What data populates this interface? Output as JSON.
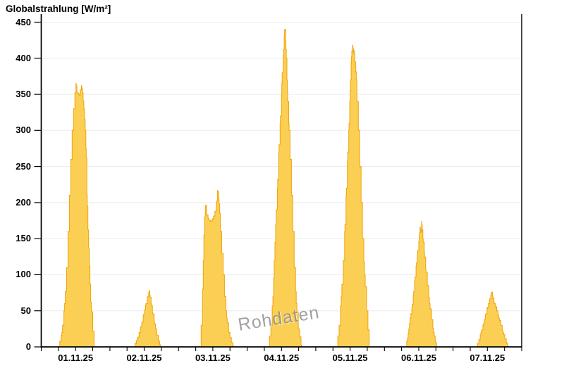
{
  "page": {
    "background": "#ffffff"
  },
  "chart_data": {
    "type": "area",
    "title": "Globalstrahlung [W/m²]",
    "watermark": "Rohdaten",
    "unit": "W/m²",
    "ylim": [
      0,
      450
    ],
    "y_ticks": [
      0,
      50,
      100,
      150,
      200,
      250,
      300,
      350,
      400,
      450
    ],
    "grid": true,
    "x_minor_ticks_per_day": 4,
    "categories": [
      "01.11.25",
      "02.11.25",
      "03.11.25",
      "04.11.25",
      "05.11.25",
      "06.11.25",
      "07.11.25"
    ],
    "daily_peaks_wm2": [
      365,
      78,
      217,
      440,
      418,
      174,
      76
    ],
    "series": [
      {
        "day": "01.11.25",
        "points": [
          [
            0.25,
            0
          ],
          [
            0.3,
            20
          ],
          [
            0.34,
            60
          ],
          [
            0.37,
            110
          ],
          [
            0.39,
            160
          ],
          [
            0.41,
            210
          ],
          [
            0.43,
            260
          ],
          [
            0.45,
            300
          ],
          [
            0.47,
            330
          ],
          [
            0.49,
            352
          ],
          [
            0.505,
            365
          ],
          [
            0.52,
            353
          ],
          [
            0.55,
            349
          ],
          [
            0.585,
            362
          ],
          [
            0.6,
            352
          ],
          [
            0.62,
            330
          ],
          [
            0.64,
            300
          ],
          [
            0.655,
            262
          ],
          [
            0.665,
            212
          ],
          [
            0.68,
            162
          ],
          [
            0.7,
            112
          ],
          [
            0.72,
            62
          ],
          [
            0.75,
            22
          ],
          [
            0.77,
            0
          ]
        ]
      },
      {
        "day": "02.11.25",
        "points": [
          [
            0.345,
            0
          ],
          [
            0.4,
            12
          ],
          [
            0.45,
            28
          ],
          [
            0.49,
            45
          ],
          [
            0.52,
            58
          ],
          [
            0.55,
            70
          ],
          [
            0.572,
            78
          ],
          [
            0.58,
            72
          ],
          [
            0.6,
            60
          ],
          [
            0.62,
            48
          ],
          [
            0.65,
            32
          ],
          [
            0.68,
            18
          ],
          [
            0.71,
            8
          ],
          [
            0.735,
            0
          ]
        ]
      },
      {
        "day": "03.11.25",
        "points": [
          [
            0.31,
            0
          ],
          [
            0.33,
            30
          ],
          [
            0.35,
            80
          ],
          [
            0.36,
            120
          ],
          [
            0.37,
            155
          ],
          [
            0.38,
            180
          ],
          [
            0.392,
            196
          ],
          [
            0.41,
            183
          ],
          [
            0.44,
            176
          ],
          [
            0.47,
            174
          ],
          [
            0.5,
            178
          ],
          [
            0.53,
            188
          ],
          [
            0.555,
            202
          ],
          [
            0.567,
            217
          ],
          [
            0.585,
            205
          ],
          [
            0.6,
            185
          ],
          [
            0.61,
            160
          ],
          [
            0.63,
            130
          ],
          [
            0.65,
            100
          ],
          [
            0.67,
            70
          ],
          [
            0.7,
            40
          ],
          [
            0.73,
            20
          ],
          [
            0.77,
            6
          ],
          [
            0.8,
            0
          ]
        ]
      },
      {
        "day": "04.11.25",
        "points": [
          [
            0.305,
            0
          ],
          [
            0.345,
            30
          ],
          [
            0.375,
            70
          ],
          [
            0.395,
            120
          ],
          [
            0.415,
            170
          ],
          [
            0.44,
            220
          ],
          [
            0.46,
            270
          ],
          [
            0.48,
            310
          ],
          [
            0.5,
            350
          ],
          [
            0.51,
            380
          ],
          [
            0.53,
            412
          ],
          [
            0.54,
            431
          ],
          [
            0.546,
            440
          ],
          [
            0.56,
            424
          ],
          [
            0.57,
            400
          ],
          [
            0.58,
            370
          ],
          [
            0.59,
            340
          ],
          [
            0.61,
            300
          ],
          [
            0.625,
            260
          ],
          [
            0.645,
            210
          ],
          [
            0.665,
            160
          ],
          [
            0.685,
            110
          ],
          [
            0.715,
            60
          ],
          [
            0.745,
            25
          ],
          [
            0.79,
            0
          ]
        ]
      },
      {
        "day": "05.11.25",
        "points": [
          [
            0.3,
            0
          ],
          [
            0.34,
            30
          ],
          [
            0.37,
            70
          ],
          [
            0.4,
            120
          ],
          [
            0.425,
            170
          ],
          [
            0.445,
            220
          ],
          [
            0.465,
            270
          ],
          [
            0.485,
            310
          ],
          [
            0.495,
            340
          ],
          [
            0.505,
            370
          ],
          [
            0.515,
            395
          ],
          [
            0.525,
            410
          ],
          [
            0.536,
            418
          ],
          [
            0.547,
            408
          ],
          [
            0.557,
            411
          ],
          [
            0.568,
            395
          ],
          [
            0.59,
            370
          ],
          [
            0.6,
            340
          ],
          [
            0.62,
            300
          ],
          [
            0.64,
            250
          ],
          [
            0.66,
            200
          ],
          [
            0.68,
            150
          ],
          [
            0.71,
            100
          ],
          [
            0.74,
            50
          ],
          [
            0.778,
            0
          ]
        ]
      },
      {
        "day": "06.11.25",
        "points": [
          [
            0.305,
            0
          ],
          [
            0.335,
            12
          ],
          [
            0.355,
            25
          ],
          [
            0.375,
            40
          ],
          [
            0.4,
            55
          ],
          [
            0.42,
            72
          ],
          [
            0.44,
            92
          ],
          [
            0.46,
            112
          ],
          [
            0.48,
            130
          ],
          [
            0.5,
            146
          ],
          [
            0.51,
            158
          ],
          [
            0.52,
            166
          ],
          [
            0.53,
            159
          ],
          [
            0.541,
            174
          ],
          [
            0.551,
            162
          ],
          [
            0.56,
            150
          ],
          [
            0.58,
            130
          ],
          [
            0.6,
            108
          ],
          [
            0.625,
            85
          ],
          [
            0.655,
            60
          ],
          [
            0.685,
            38
          ],
          [
            0.715,
            20
          ],
          [
            0.74,
            8
          ],
          [
            0.758,
            0
          ]
        ]
      },
      {
        "day": "07.11.25",
        "points": [
          [
            0.335,
            0
          ],
          [
            0.375,
            10
          ],
          [
            0.405,
            20
          ],
          [
            0.44,
            32
          ],
          [
            0.47,
            44
          ],
          [
            0.5,
            55
          ],
          [
            0.53,
            65
          ],
          [
            0.55,
            72
          ],
          [
            0.562,
            76
          ],
          [
            0.58,
            68
          ],
          [
            0.6,
            60
          ],
          [
            0.635,
            50
          ],
          [
            0.665,
            40
          ],
          [
            0.695,
            30
          ],
          [
            0.725,
            20
          ],
          [
            0.755,
            11
          ],
          [
            0.78,
            5
          ],
          [
            0.8,
            0
          ]
        ]
      }
    ],
    "colors": {
      "fill": "#FBCF53",
      "stroke": "#F0A30A",
      "grid": "#ECECEC",
      "axis": "#000000",
      "text": "#000000",
      "watermark": "#8A8A8A"
    }
  }
}
